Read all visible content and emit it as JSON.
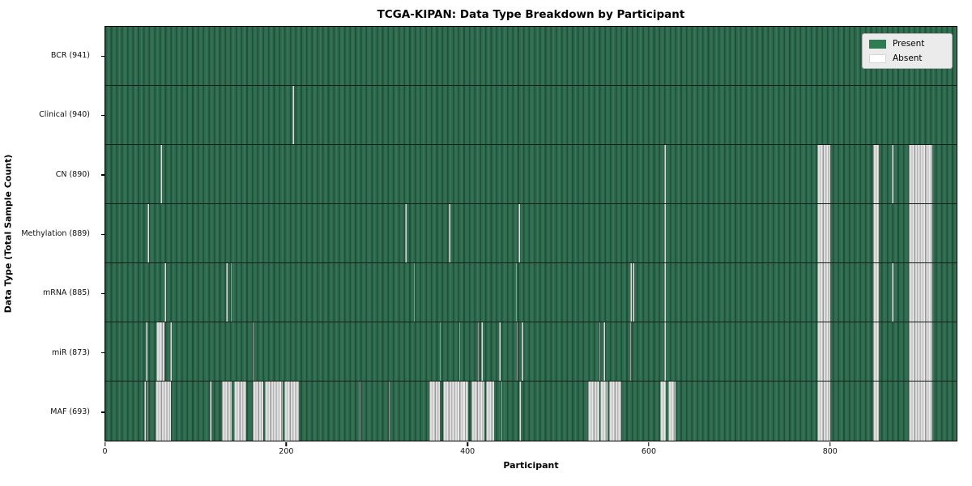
{
  "figure": {
    "title": "TCGA-KIPAN: Data Type Breakdown by Participant",
    "xlabel": "Participant",
    "ylabel": "Data Type (Total Sample Count)"
  },
  "legend": {
    "items": [
      {
        "label": "Present",
        "color": "#2e7d52"
      },
      {
        "label": "Absent",
        "color": "#ffffff"
      }
    ]
  },
  "colors": {
    "present_mid": "#2d6a4e",
    "present_dark": "#1f5139",
    "present_light": "#38745a",
    "absent_light": "#dedede",
    "absent_dark": "#979797",
    "plot_border": "#000000"
  },
  "chart_data": {
    "type": "heatmap",
    "title": "TCGA-KIPAN: Data Type Breakdown by Participant",
    "xlabel": "Participant",
    "ylabel": "Data Type (Total Sample Count)",
    "x_ticks": [
      0,
      200,
      400,
      600,
      800
    ],
    "x_max": 941,
    "grid": false,
    "legend_position": "upper right",
    "legend_entries": [
      "Present",
      "Absent"
    ],
    "rows": [
      {
        "label": "BCR (941)",
        "data_type": "BCR",
        "present_count": 941,
        "absent_ranges": []
      },
      {
        "label": "Clinical (940)",
        "data_type": "Clinical",
        "present_count": 940,
        "absent_ranges": [
          [
            207,
            208.3
          ]
        ]
      },
      {
        "label": "CN (890)",
        "data_type": "CN",
        "present_count": 890,
        "absent_ranges": [
          [
            61,
            62.3
          ],
          [
            617.8,
            619.2
          ],
          [
            787,
            801
          ],
          [
            849,
            855
          ],
          [
            869.5,
            870.8
          ],
          [
            888,
            914
          ]
        ]
      },
      {
        "label": "Methylation (889)",
        "data_type": "Methylation",
        "present_count": 889,
        "absent_ranges": [
          [
            47,
            48.2
          ],
          [
            331.5,
            332.8
          ],
          [
            380,
            381.5
          ],
          [
            457,
            458.5
          ],
          [
            617.8,
            619.2
          ],
          [
            787,
            801
          ],
          [
            849,
            855
          ],
          [
            888,
            914
          ]
        ]
      },
      {
        "label": "mRNA (885)",
        "data_type": "mRNA",
        "present_count": 885,
        "absent_ranges": [
          [
            65.5,
            66.8
          ],
          [
            133.5,
            134.8
          ],
          [
            138.5,
            139.8
          ],
          [
            341,
            342.2
          ],
          [
            453.8,
            455
          ],
          [
            580.5,
            581.8
          ],
          [
            583.2,
            584.4
          ],
          [
            617.8,
            619.2
          ],
          [
            787,
            801
          ],
          [
            849,
            855
          ],
          [
            869.5,
            870.8
          ],
          [
            888,
            914
          ]
        ]
      },
      {
        "label": "miR (873)",
        "data_type": "miR",
        "present_count": 873,
        "absent_ranges": [
          [
            45,
            46.2
          ],
          [
            56.5,
            65.5
          ],
          [
            71.8,
            73
          ],
          [
            163,
            164.3
          ],
          [
            369.5,
            371
          ],
          [
            391,
            392.5
          ],
          [
            411.5,
            413
          ],
          [
            415.5,
            417.2
          ],
          [
            435.5,
            437
          ],
          [
            454.5,
            455.8
          ],
          [
            460.5,
            462
          ],
          [
            545.8,
            547.5
          ],
          [
            550.8,
            552
          ],
          [
            579.8,
            581
          ],
          [
            617.8,
            619.5
          ],
          [
            787,
            801
          ],
          [
            849,
            855
          ],
          [
            888,
            914
          ]
        ]
      },
      {
        "label": "MAF (693)",
        "data_type": "MAF",
        "present_count": 693,
        "absent_ranges": [
          [
            43.3,
            44.8
          ],
          [
            46.3,
            47.8
          ],
          [
            55.5,
            72.5
          ],
          [
            115.8,
            117.3
          ],
          [
            129,
            139.5
          ],
          [
            142,
            155.8
          ],
          [
            163,
            175
          ],
          [
            176.5,
            196
          ],
          [
            198,
            214
          ],
          [
            280.8,
            282.2
          ],
          [
            313,
            314.5
          ],
          [
            358,
            370
          ],
          [
            373.3,
            401.3
          ],
          [
            404.8,
            419.3
          ],
          [
            421,
            430
          ],
          [
            437.8,
            439
          ],
          [
            457.8,
            459
          ],
          [
            533.8,
            545.8
          ],
          [
            546.8,
            554.8
          ],
          [
            556.8,
            570.2
          ],
          [
            613,
            619.5
          ],
          [
            622,
            630
          ],
          [
            787,
            801
          ],
          [
            849,
            855
          ],
          [
            888,
            914
          ]
        ]
      }
    ]
  }
}
